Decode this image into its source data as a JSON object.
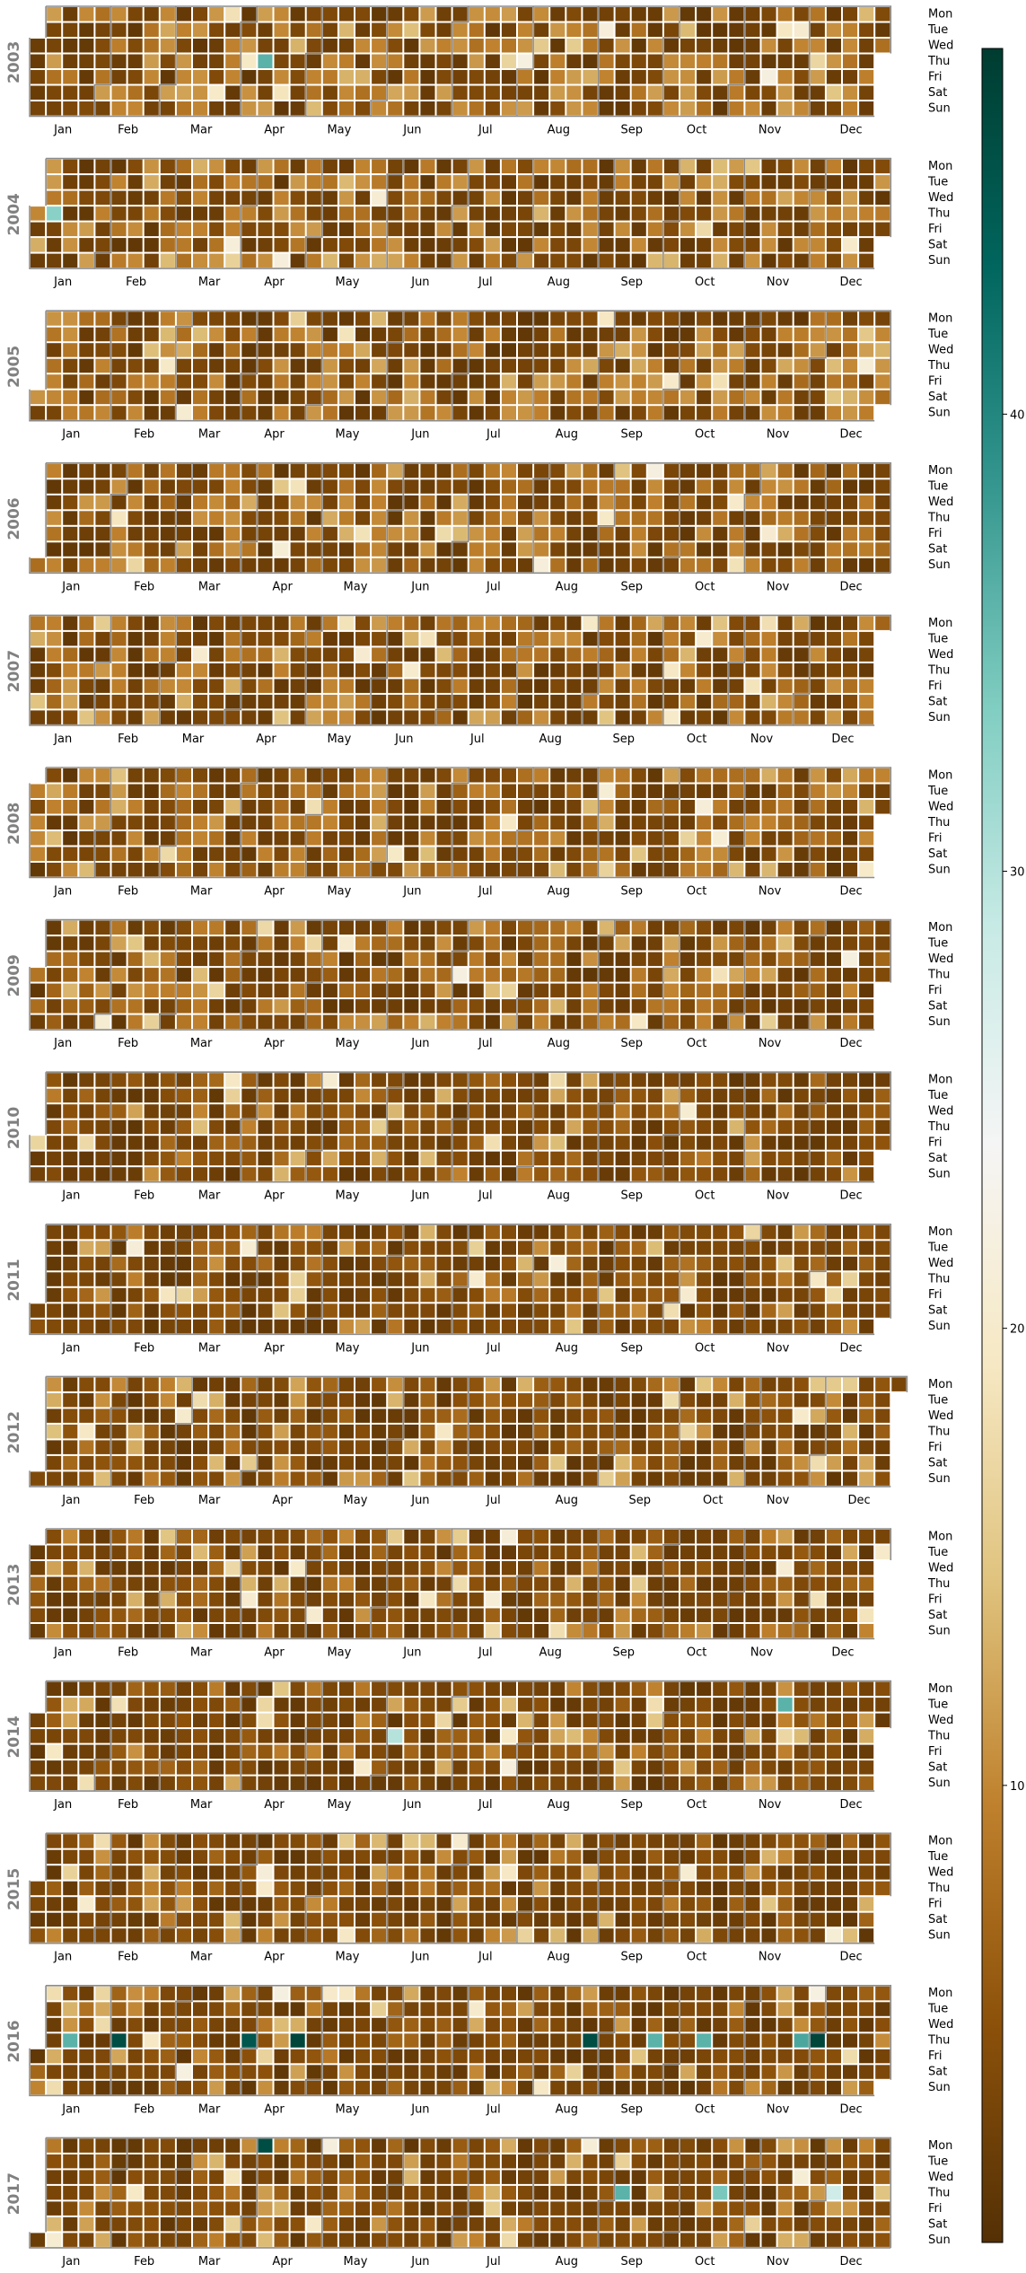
{
  "chart_data": {
    "type": "heatmap",
    "title": "",
    "years": [
      "2003",
      "2004",
      "2005",
      "2006",
      "2007",
      "2008",
      "2009",
      "2010",
      "2011",
      "2012",
      "2013",
      "2014",
      "2015",
      "2016",
      "2017"
    ],
    "month_labels": [
      "Jan",
      "Feb",
      "Mar",
      "Apr",
      "May",
      "Jun",
      "Jul",
      "Aug",
      "Sep",
      "Oct",
      "Nov",
      "Dec"
    ],
    "day_labels": [
      "Mon",
      "Tue",
      "Wed",
      "Thu",
      "Fri",
      "Sat",
      "Sun"
    ],
    "colorbar": {
      "min": 0,
      "max": 48,
      "ticks": [
        10,
        20,
        30,
        40
      ],
      "colormap": "BrBG"
    },
    "value_range": [
      0,
      48
    ],
    "notable_values": [
      {
        "date": "2003-04-10",
        "value": 36
      },
      {
        "date": "2004-01-08",
        "value": 33
      },
      {
        "date": "2014-06-05",
        "value": 30
      },
      {
        "date": "2014-11-18",
        "value": 36
      },
      {
        "date": "2016-01-14",
        "value": 36
      },
      {
        "date": "2016-02-04",
        "value": 46
      },
      {
        "date": "2016-03-31",
        "value": 45
      },
      {
        "date": "2016-04-21",
        "value": 47
      },
      {
        "date": "2016-08-25",
        "value": 46
      },
      {
        "date": "2016-09-22",
        "value": 36
      },
      {
        "date": "2016-10-13",
        "value": 36
      },
      {
        "date": "2016-11-24",
        "value": 37
      },
      {
        "date": "2016-12-01",
        "value": 47
      },
      {
        "date": "2017-04-03",
        "value": 46
      },
      {
        "date": "2017-09-07",
        "value": 36
      },
      {
        "date": "2017-10-19",
        "value": 34
      },
      {
        "date": "2017-12-07",
        "value": 28
      }
    ]
  }
}
